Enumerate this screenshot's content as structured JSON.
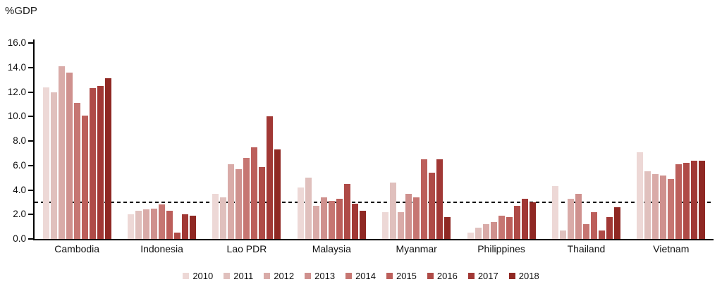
{
  "chart_data": {
    "type": "bar",
    "title": "%GDP",
    "ylabel": "%GDP",
    "xlabel": "",
    "grid": false,
    "legend_position": "bottom",
    "categories": [
      "Cambodia",
      "Indonesia",
      "Lao PDR",
      "Malaysia",
      "Myanmar",
      "Philippines",
      "Thailand",
      "Vietnam"
    ],
    "series": [
      {
        "name": "2010",
        "color": "#EDD8D6",
        "values": [
          12.4,
          2.0,
          3.7,
          4.2,
          2.2,
          0.5,
          4.3,
          7.1
        ]
      },
      {
        "name": "2011",
        "color": "#E0C0BD",
        "values": [
          12.0,
          2.3,
          3.4,
          5.0,
          4.6,
          0.9,
          0.7,
          5.5
        ]
      },
      {
        "name": "2012",
        "color": "#D9ABA8",
        "values": [
          14.1,
          2.4,
          6.1,
          2.7,
          2.2,
          1.2,
          3.3,
          5.3
        ]
      },
      {
        "name": "2013",
        "color": "#CF918E",
        "values": [
          13.6,
          2.5,
          5.7,
          3.4,
          3.7,
          1.4,
          3.7,
          5.2
        ]
      },
      {
        "name": "2014",
        "color": "#C67672",
        "values": [
          11.1,
          2.8,
          6.6,
          3.1,
          3.4,
          1.9,
          1.2,
          4.9
        ]
      },
      {
        "name": "2015",
        "color": "#BC5F5B",
        "values": [
          10.1,
          2.3,
          7.5,
          3.3,
          6.5,
          1.8,
          2.2,
          6.1
        ]
      },
      {
        "name": "2016",
        "color": "#AF4B47",
        "values": [
          12.3,
          0.5,
          5.9,
          4.5,
          5.4,
          2.7,
          0.7,
          6.2
        ]
      },
      {
        "name": "2017",
        "color": "#A13835",
        "values": [
          12.5,
          2.0,
          10.0,
          2.9,
          6.5,
          3.3,
          1.8,
          6.4
        ]
      },
      {
        "name": "2018",
        "color": "#8F2823",
        "values": [
          13.1,
          1.9,
          7.3,
          2.3,
          1.8,
          3.0,
          2.6,
          6.4
        ]
      }
    ],
    "y_axis": {
      "min": 0,
      "max": 16,
      "step": 2,
      "tick_decimals": 1
    },
    "reference_line": {
      "value": 3.0,
      "style": "dashed",
      "color": "#000000"
    },
    "axis_color": "#000000",
    "background_color": "#FFFFFF"
  }
}
